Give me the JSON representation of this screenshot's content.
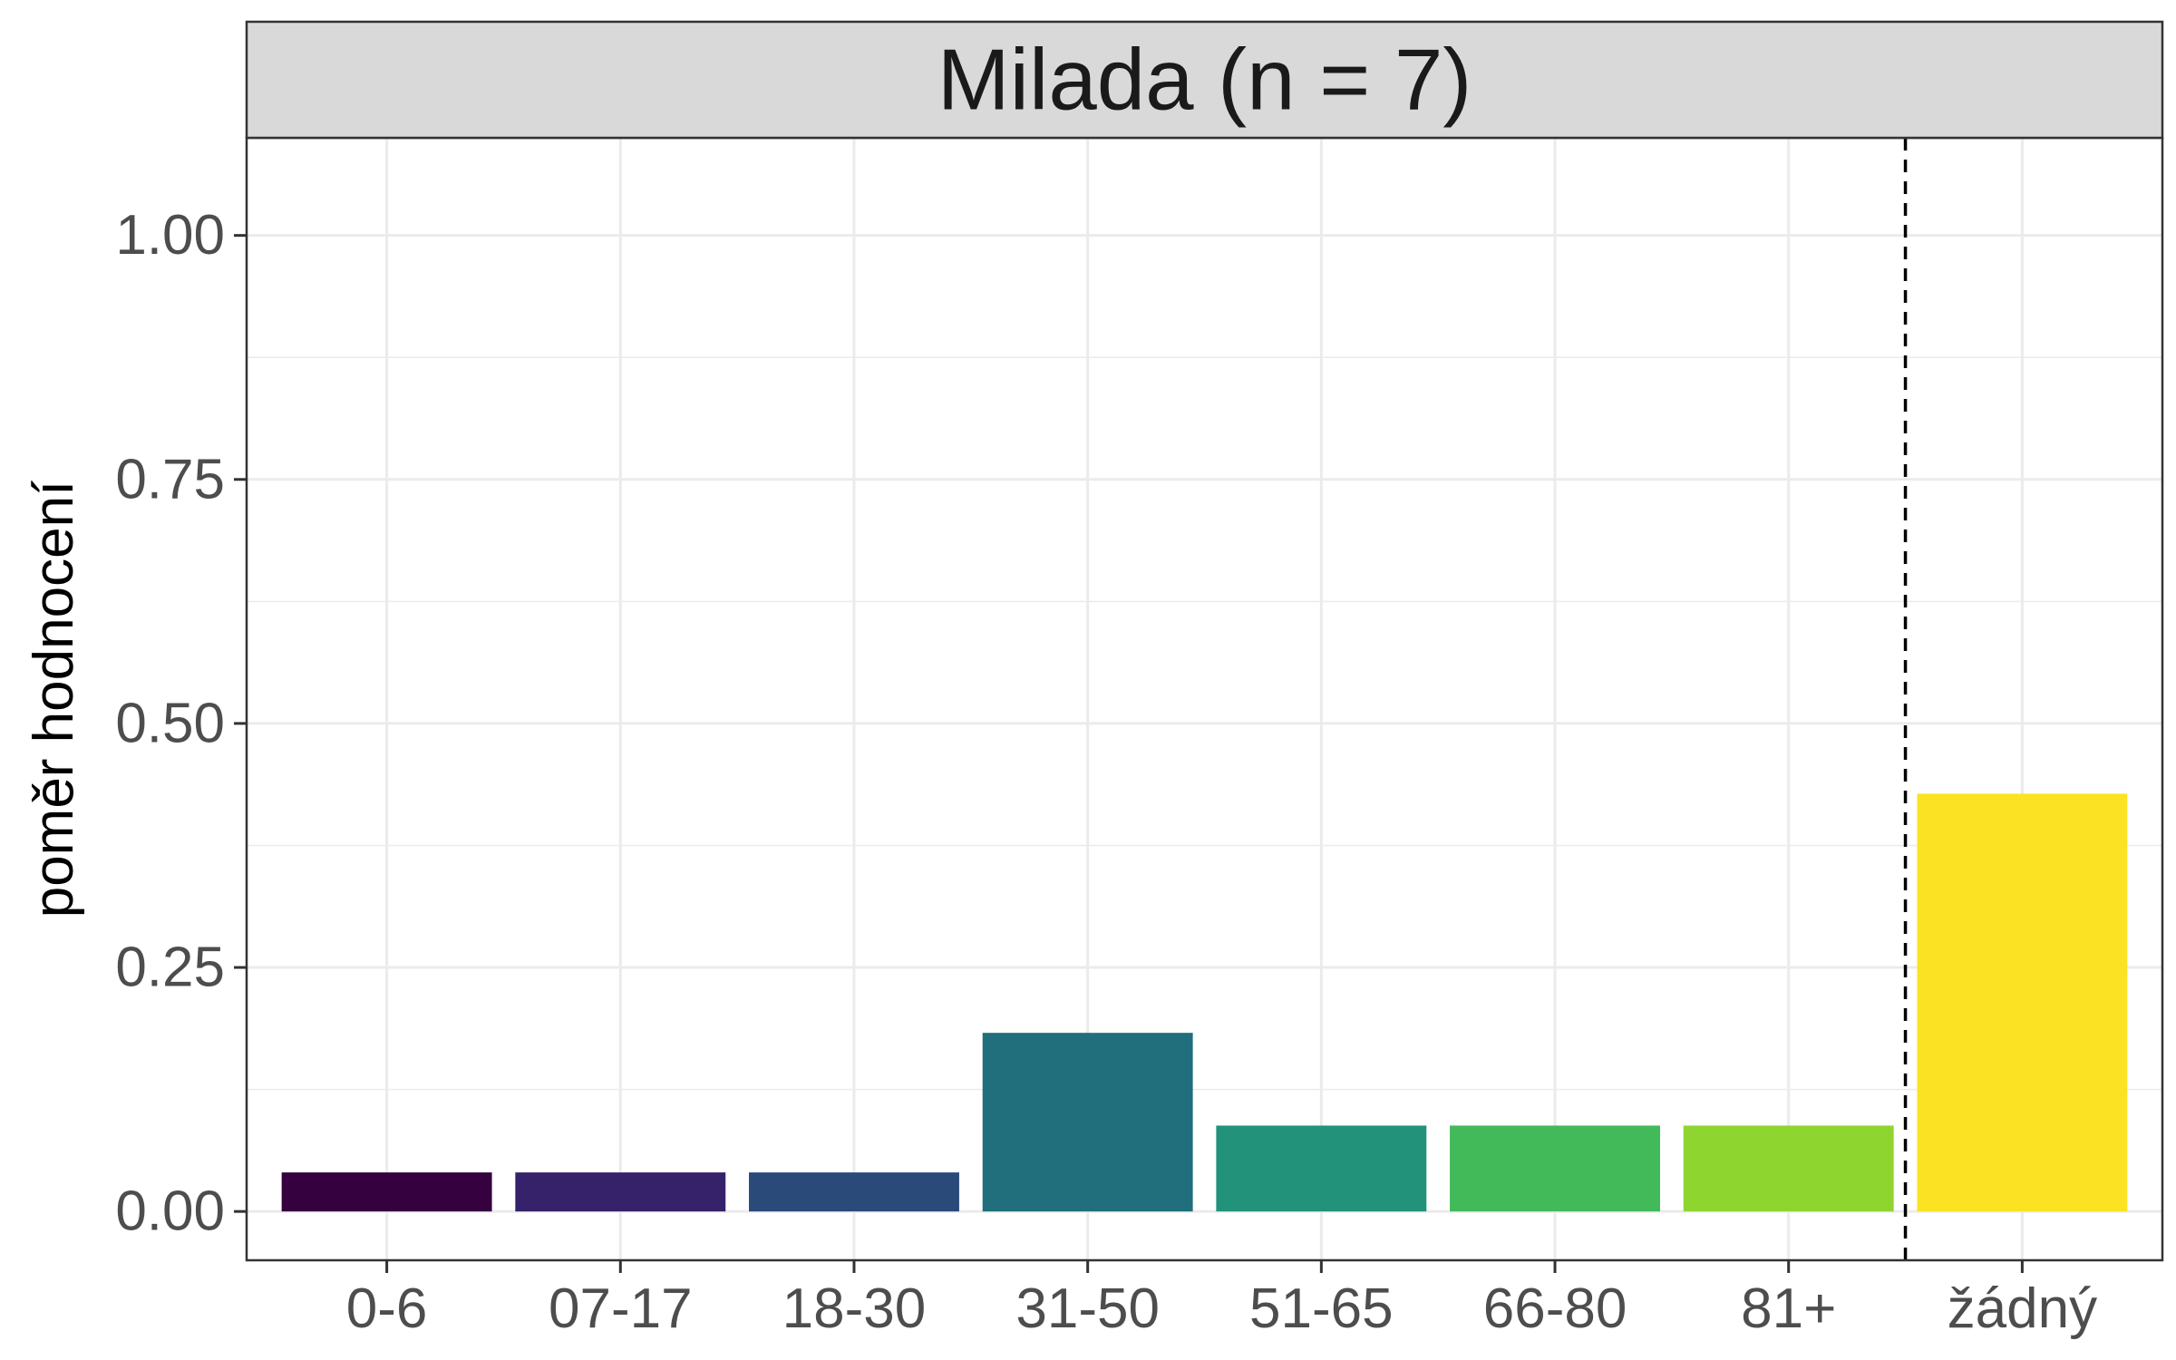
{
  "chart_data": {
    "type": "bar",
    "facet_title": "Milada (n = 7)",
    "categories": [
      "0-6",
      "07-17",
      "18-30",
      "31-50",
      "51-65",
      "66-80",
      "81+",
      "žádný"
    ],
    "values": [
      0.04,
      0.04,
      0.04,
      0.183,
      0.088,
      0.088,
      0.088,
      0.428
    ],
    "colors": [
      "#35013F",
      "#36226B",
      "#2A4A7A",
      "#216E7C",
      "#22937A",
      "#43BA5A",
      "#8FD530",
      "#FBE324"
    ],
    "xlabel": "",
    "ylabel": "poměr hodnocení",
    "ylim": [
      -0.05,
      1.1
    ],
    "yticks": [
      0,
      0.25,
      0.5,
      0.75,
      1
    ],
    "ytick_labels": [
      "0.00",
      "0.25",
      "0.50",
      "0.75",
      "1.00"
    ],
    "grid": true,
    "reference_line": {
      "style": "dashed",
      "between": [
        "81+",
        "žádný"
      ]
    }
  }
}
